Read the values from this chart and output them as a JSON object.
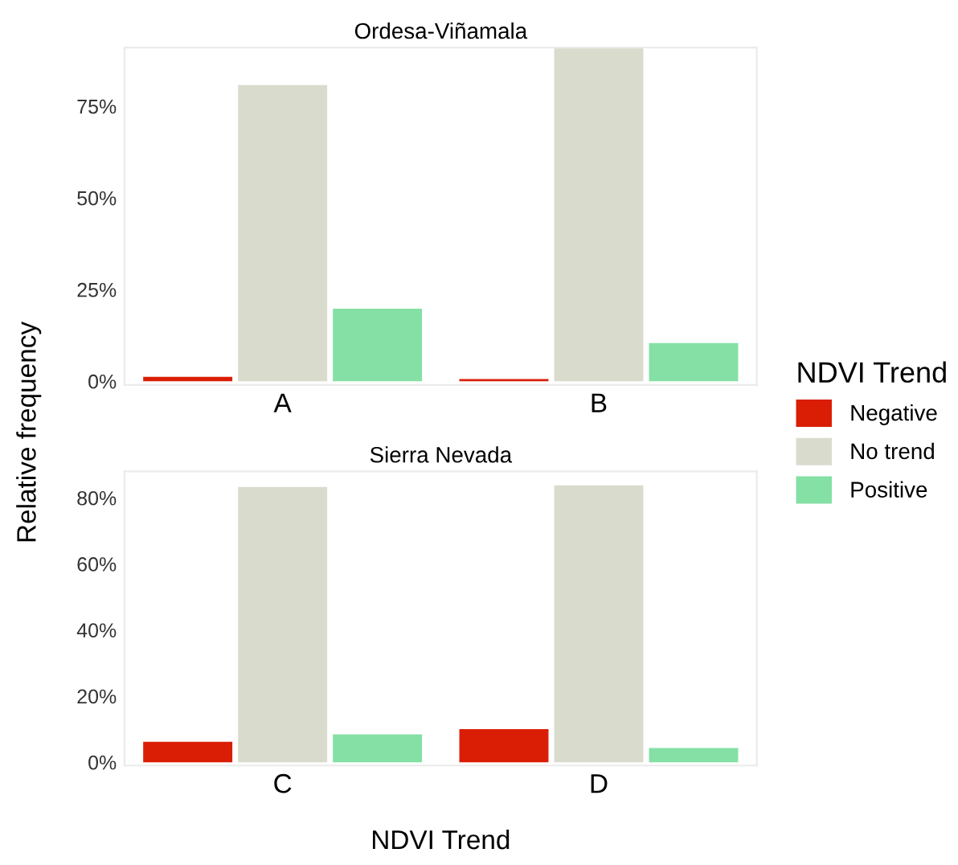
{
  "chart_data": [
    {
      "type": "bar",
      "title": "Ordesa-Viñamala",
      "ylabel": "Relative frequency",
      "legend_title": "NDVI Trend",
      "legend": "right",
      "grid": false,
      "categories": [
        "A",
        "B"
      ],
      "series": [
        {
          "name": "Negative",
          "color": "#d91e05",
          "values": [
            1.2,
            0.6
          ]
        },
        {
          "name": "No trend",
          "color": "#d9dccd",
          "values": [
            80.8,
            90.8
          ]
        },
        {
          "name": "Positive",
          "color": "#84e0a4",
          "values": [
            19.8,
            10.4
          ]
        }
      ],
      "ylim": [
        -1,
        91
      ],
      "yticks": [
        {
          "value": 0,
          "label": "0%"
        },
        {
          "value": 25,
          "label": "25%"
        },
        {
          "value": 50,
          "label": "50%"
        },
        {
          "value": 75,
          "label": "75%"
        }
      ]
    },
    {
      "type": "bar",
      "title": "Sierra Nevada",
      "xlabel": "NDVI Trend",
      "grid": false,
      "categories": [
        "C",
        "D"
      ],
      "series": [
        {
          "color": "#d91e05",
          "values": [
            6.2,
            10.0
          ]
        },
        {
          "color": "#d9dccd",
          "values": [
            83.3,
            83.8
          ]
        },
        {
          "color": "#84e0a4",
          "values": [
            8.4,
            4.3
          ]
        }
      ],
      "ylim": [
        -1,
        88
      ],
      "yticks": [
        {
          "value": 0,
          "label": "0%"
        },
        {
          "value": 20,
          "label": "20%"
        },
        {
          "value": 40,
          "label": "40%"
        },
        {
          "value": 60,
          "label": "60%"
        },
        {
          "value": 80,
          "label": "80%"
        }
      ]
    }
  ]
}
